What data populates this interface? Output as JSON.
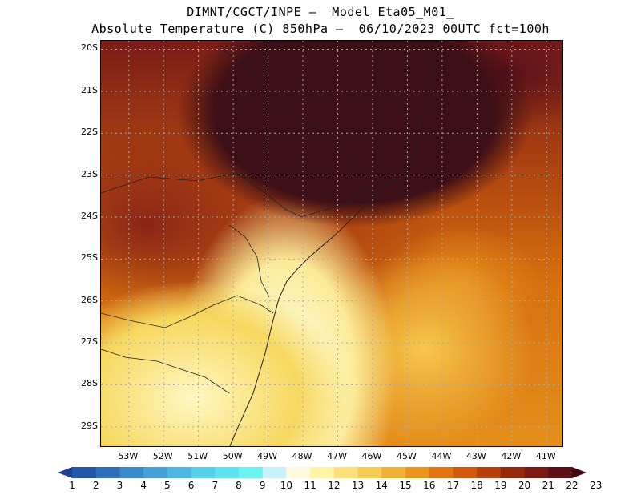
{
  "title": {
    "line1": "DIMNT/CGCT/INPE –  Model Eta05_M01_",
    "line2": "Absolute Temperature (C) 850hPa –  06/10/2023 00UTC fct=100h"
  },
  "map": {
    "lat_labels": [
      "20S",
      "21S",
      "22S",
      "23S",
      "24S",
      "25S",
      "26S",
      "27S",
      "28S",
      "29S"
    ],
    "lon_labels": [
      "53W",
      "52W",
      "51W",
      "50W",
      "49W",
      "48W",
      "47W",
      "46W",
      "45W",
      "44W",
      "43W",
      "42W",
      "41W"
    ],
    "lat_range": [
      -29.5,
      -19.8
    ],
    "lon_range": [
      -53.8,
      -40.5
    ],
    "grid": "dotted"
  },
  "colorbar": {
    "labels": [
      "1",
      "2",
      "3",
      "4",
      "5",
      "6",
      "7",
      "8",
      "9",
      "10",
      "11",
      "12",
      "13",
      "14",
      "15",
      "16",
      "17",
      "18",
      "19",
      "20",
      "21",
      "22",
      "23"
    ],
    "colors": [
      "#1d3f8c",
      "#2456a4",
      "#2f6fba",
      "#3a89c9",
      "#47a0d6",
      "#4fb8e0",
      "#57cfe8",
      "#5fe2ee",
      "#6df3f2",
      "#c8f0f8",
      "#fffbe0",
      "#fff3a8",
      "#fbe07a",
      "#f4cb55",
      "#eeb133",
      "#e8941d",
      "#df7411",
      "#d0580d",
      "#b5400d",
      "#962a0f",
      "#7a1a12",
      "#5c0f16",
      "#3d0a12"
    ]
  }
}
